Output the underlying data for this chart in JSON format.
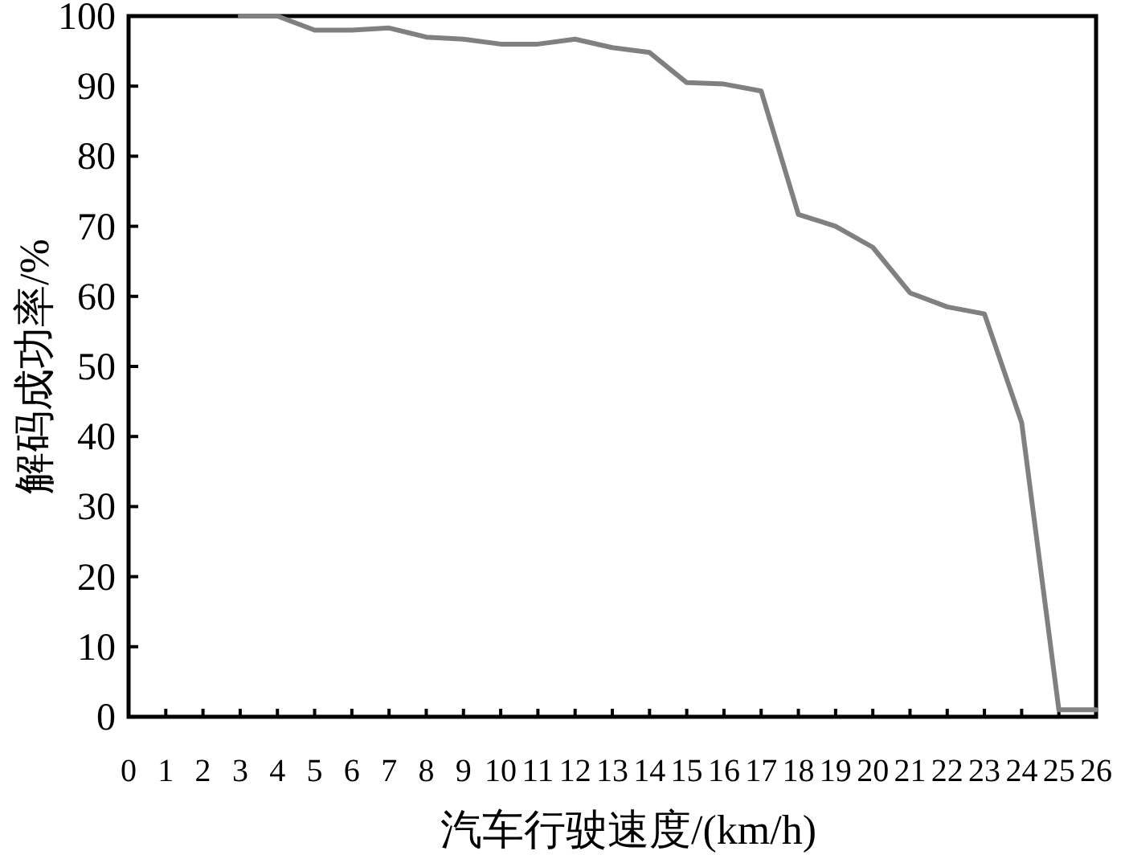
{
  "chart_data": {
    "type": "line",
    "xlabel": "汽车行驶速度/(km/h)",
    "ylabel": "解码成功率/%",
    "x": [
      3,
      4,
      5,
      6,
      7,
      8,
      9,
      10,
      11,
      12,
      13,
      14,
      15,
      16,
      17,
      18,
      19,
      20,
      21,
      22,
      23,
      24,
      25,
      26
    ],
    "series": [
      {
        "color": "#808080",
        "values": [
          100,
          100,
          98,
          98,
          98.3,
          97,
          96.7,
          96,
          96,
          96.7,
          95.5,
          94.8,
          90.5,
          90.3,
          89.3,
          71.7,
          70,
          67,
          60.5,
          58.5,
          57.5,
          42,
          1,
          1
        ]
      }
    ],
    "xlim": [
      0,
      26
    ],
    "xticks": [
      0,
      1,
      2,
      3,
      4,
      5,
      6,
      7,
      8,
      9,
      10,
      11,
      12,
      13,
      14,
      15,
      16,
      17,
      18,
      19,
      20,
      21,
      22,
      23,
      24,
      25,
      26
    ],
    "ylim": [
      0,
      100
    ],
    "yticks": [
      0,
      10,
      20,
      30,
      40,
      50,
      60,
      70,
      80,
      90,
      100
    ],
    "grid": false,
    "marker": "none",
    "line_style": "solid"
  }
}
